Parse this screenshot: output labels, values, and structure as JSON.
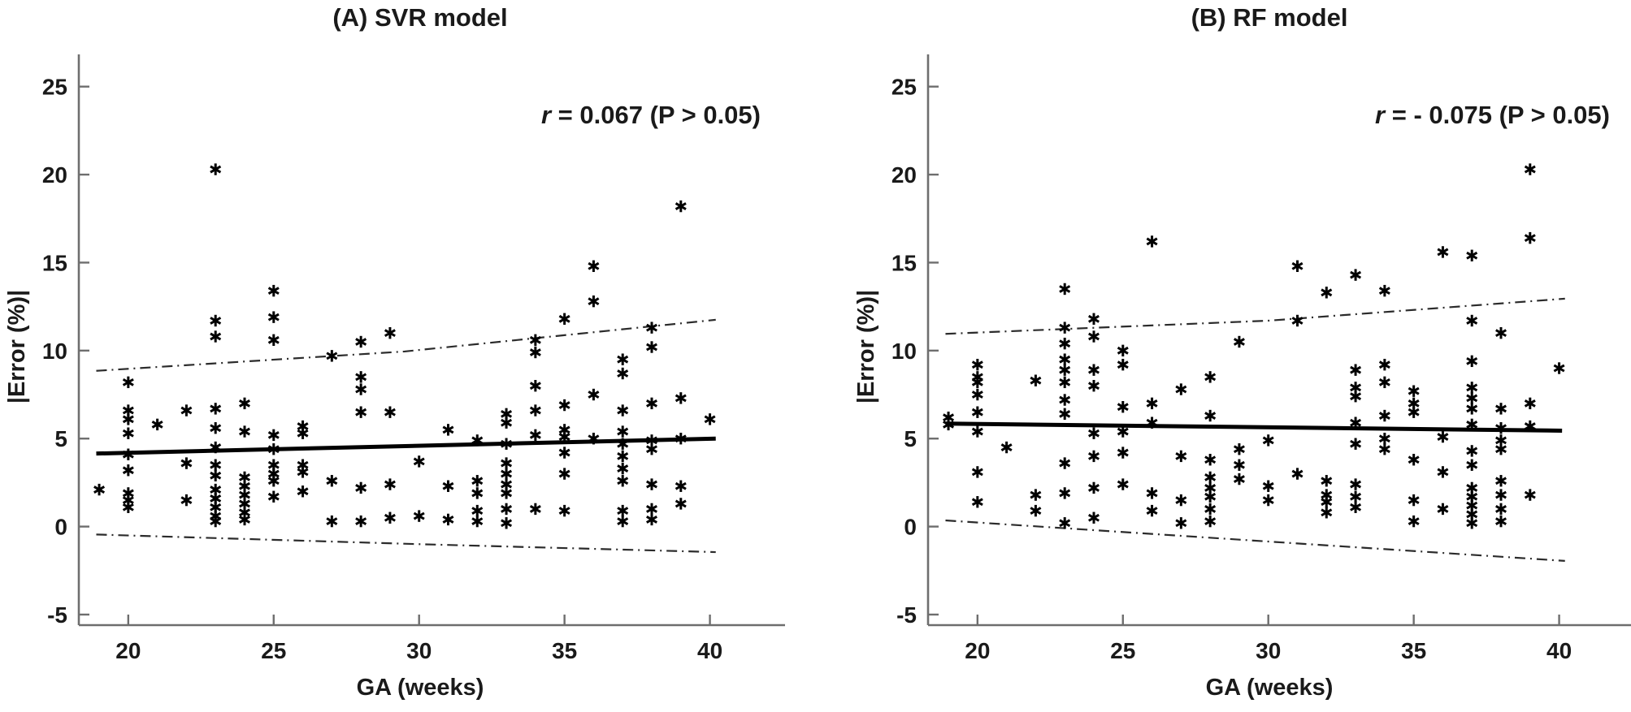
{
  "figure": {
    "background": "#ffffff"
  },
  "style": {
    "marker": "asterisk",
    "marker_color": "#000000",
    "trend_color": "#000000",
    "ci_color": "#2b2b2b",
    "spine_color": "#6e6e6e",
    "text_color": "#1a1a1a"
  },
  "chart_data": [
    {
      "type": "scatter",
      "title": "(A) SVR model",
      "annotation": {
        "r_italic": "r",
        "rest": " = 0.067 (P > 0.05)"
      },
      "xlabel": "GA (weeks)",
      "ylabel": "|Error (%)|",
      "xlim": [
        18.3,
        41.8
      ],
      "ylim": [
        -5.6,
        26
      ],
      "xticks": [
        20,
        25,
        30,
        35,
        40
      ],
      "yticks": [
        -5,
        0,
        5,
        10,
        15,
        20,
        25
      ],
      "grid": false,
      "legend": "none",
      "trend_line": {
        "x": [
          18.9,
          40.2
        ],
        "y": [
          4.15,
          5.0
        ]
      },
      "ci_upper": {
        "x": [
          18.9,
          29.5,
          40.2
        ],
        "y": [
          8.85,
          9.95,
          11.75
        ]
      },
      "ci_lower": {
        "x": [
          18.9,
          30.0,
          40.2
        ],
        "y": [
          -0.45,
          -1.0,
          -1.45
        ]
      },
      "points": [
        [
          19,
          2.1
        ],
        [
          20,
          8.2
        ],
        [
          20,
          6.6
        ],
        [
          20,
          6.1
        ],
        [
          20,
          5.3
        ],
        [
          20,
          4.1
        ],
        [
          20,
          3.2
        ],
        [
          20,
          1.9
        ],
        [
          20,
          1.5
        ],
        [
          20,
          1.1
        ],
        [
          21,
          5.8
        ],
        [
          22,
          6.6
        ],
        [
          22,
          3.6
        ],
        [
          22,
          1.5
        ],
        [
          23,
          20.3
        ],
        [
          23,
          11.7
        ],
        [
          23,
          10.8
        ],
        [
          23,
          6.7
        ],
        [
          23,
          5.6
        ],
        [
          23,
          4.5
        ],
        [
          23,
          3.5
        ],
        [
          23,
          2.9
        ],
        [
          23,
          2.1
        ],
        [
          23,
          1.6
        ],
        [
          23,
          1.1
        ],
        [
          23,
          0.6
        ],
        [
          23,
          0.3
        ],
        [
          24,
          7.0
        ],
        [
          24,
          5.4
        ],
        [
          24,
          2.8
        ],
        [
          24,
          2.3
        ],
        [
          24,
          1.8
        ],
        [
          24,
          1.3
        ],
        [
          24,
          0.8
        ],
        [
          24,
          0.4
        ],
        [
          25,
          13.4
        ],
        [
          25,
          11.9
        ],
        [
          25,
          10.6
        ],
        [
          25,
          5.2
        ],
        [
          25,
          4.4
        ],
        [
          25,
          3.5
        ],
        [
          25,
          3.0
        ],
        [
          25,
          2.6
        ],
        [
          25,
          1.7
        ],
        [
          26,
          5.7
        ],
        [
          26,
          5.3
        ],
        [
          26,
          3.5
        ],
        [
          26,
          3.1
        ],
        [
          26,
          2.0
        ],
        [
          27,
          9.7
        ],
        [
          27,
          2.6
        ],
        [
          27,
          0.3
        ],
        [
          28,
          10.5
        ],
        [
          28,
          8.5
        ],
        [
          28,
          7.8
        ],
        [
          28,
          6.5
        ],
        [
          28,
          2.2
        ],
        [
          28,
          0.3
        ],
        [
          29,
          11.0
        ],
        [
          29,
          6.5
        ],
        [
          29,
          2.4
        ],
        [
          29,
          0.5
        ],
        [
          30,
          3.7
        ],
        [
          30,
          0.6
        ],
        [
          31,
          5.5
        ],
        [
          31,
          2.3
        ],
        [
          31,
          0.4
        ],
        [
          32,
          4.9
        ],
        [
          32,
          2.6
        ],
        [
          32,
          1.9
        ],
        [
          32,
          0.9
        ],
        [
          32,
          0.3
        ],
        [
          33,
          6.4
        ],
        [
          33,
          5.9
        ],
        [
          33,
          4.7
        ],
        [
          33,
          3.6
        ],
        [
          33,
          3.0
        ],
        [
          33,
          2.4
        ],
        [
          33,
          1.9
        ],
        [
          33,
          1.0
        ],
        [
          33,
          0.2
        ],
        [
          34,
          10.6
        ],
        [
          34,
          9.9
        ],
        [
          34,
          8.0
        ],
        [
          34,
          6.6
        ],
        [
          34,
          5.2
        ],
        [
          34,
          1.0
        ],
        [
          35,
          11.8
        ],
        [
          35,
          6.9
        ],
        [
          35,
          5.5
        ],
        [
          35,
          5.1
        ],
        [
          35,
          4.2
        ],
        [
          35,
          3.0
        ],
        [
          35,
          0.9
        ],
        [
          36,
          14.8
        ],
        [
          36,
          12.8
        ],
        [
          36,
          7.5
        ],
        [
          36,
          5.0
        ],
        [
          37,
          9.5
        ],
        [
          37,
          8.7
        ],
        [
          37,
          6.6
        ],
        [
          37,
          5.4
        ],
        [
          37,
          4.7
        ],
        [
          37,
          4.0
        ],
        [
          37,
          3.3
        ],
        [
          37,
          2.6
        ],
        [
          37,
          0.9
        ],
        [
          37,
          0.3
        ],
        [
          38,
          11.3
        ],
        [
          38,
          10.2
        ],
        [
          38,
          7.0
        ],
        [
          38,
          4.9
        ],
        [
          38,
          4.4
        ],
        [
          38,
          2.4
        ],
        [
          38,
          1.0
        ],
        [
          38,
          0.4
        ],
        [
          39,
          18.2
        ],
        [
          39,
          7.3
        ],
        [
          39,
          5.0
        ],
        [
          39,
          2.3
        ],
        [
          39,
          1.3
        ],
        [
          40,
          6.1
        ]
      ]
    },
    {
      "type": "scatter",
      "title": "(B) RF model",
      "annotation": {
        "r_italic": "r",
        "rest": " = - 0.075 (P > 0.05)"
      },
      "xlabel": "GA (weeks)",
      "ylabel": "|Error (%)|",
      "xlim": [
        18.3,
        41.8
      ],
      "ylim": [
        -5.6,
        26
      ],
      "xticks": [
        20,
        25,
        30,
        35,
        40
      ],
      "yticks": [
        -5,
        0,
        5,
        10,
        15,
        20,
        25
      ],
      "grid": false,
      "legend": "none",
      "trend_line": {
        "x": [
          18.9,
          40.1
        ],
        "y": [
          5.85,
          5.45
        ]
      },
      "ci_upper": {
        "x": [
          18.9,
          30.0,
          40.2
        ],
        "y": [
          10.95,
          11.7,
          12.95
        ]
      },
      "ci_lower": {
        "x": [
          18.9,
          30.0,
          40.2
        ],
        "y": [
          0.35,
          -0.85,
          -1.95
        ]
      },
      "points": [
        [
          19,
          6.2
        ],
        [
          19,
          5.8
        ],
        [
          20,
          9.2
        ],
        [
          20,
          8.5
        ],
        [
          20,
          8.2
        ],
        [
          20,
          7.5
        ],
        [
          20,
          6.5
        ],
        [
          20,
          5.4
        ],
        [
          20,
          3.1
        ],
        [
          20,
          1.4
        ],
        [
          21,
          4.5
        ],
        [
          22,
          8.3
        ],
        [
          22,
          1.8
        ],
        [
          22,
          0.9
        ],
        [
          23,
          13.5
        ],
        [
          23,
          11.3
        ],
        [
          23,
          10.4
        ],
        [
          23,
          9.5
        ],
        [
          23,
          8.9
        ],
        [
          23,
          8.2
        ],
        [
          23,
          7.2
        ],
        [
          23,
          6.4
        ],
        [
          23,
          3.6
        ],
        [
          23,
          1.9
        ],
        [
          23,
          0.2
        ],
        [
          24,
          11.8
        ],
        [
          24,
          10.8
        ],
        [
          24,
          8.9
        ],
        [
          24,
          8.0
        ],
        [
          24,
          5.3
        ],
        [
          24,
          4.0
        ],
        [
          24,
          2.2
        ],
        [
          24,
          0.5
        ],
        [
          25,
          10.0
        ],
        [
          25,
          9.2
        ],
        [
          25,
          6.8
        ],
        [
          25,
          5.4
        ],
        [
          25,
          4.2
        ],
        [
          25,
          2.4
        ],
        [
          26,
          16.2
        ],
        [
          26,
          7.0
        ],
        [
          26,
          5.9
        ],
        [
          26,
          1.9
        ],
        [
          26,
          0.9
        ],
        [
          27,
          7.8
        ],
        [
          27,
          4.0
        ],
        [
          27,
          1.5
        ],
        [
          27,
          0.2
        ],
        [
          28,
          8.5
        ],
        [
          28,
          6.3
        ],
        [
          28,
          3.8
        ],
        [
          28,
          2.8
        ],
        [
          28,
          2.2
        ],
        [
          28,
          1.7
        ],
        [
          28,
          1.0
        ],
        [
          28,
          0.3
        ],
        [
          29,
          10.5
        ],
        [
          29,
          4.4
        ],
        [
          29,
          3.5
        ],
        [
          29,
          2.7
        ],
        [
          30,
          4.9
        ],
        [
          30,
          2.3
        ],
        [
          30,
          1.5
        ],
        [
          31,
          14.8
        ],
        [
          31,
          11.7
        ],
        [
          31,
          3.0
        ],
        [
          32,
          13.3
        ],
        [
          32,
          2.6
        ],
        [
          32,
          1.8
        ],
        [
          32,
          1.4
        ],
        [
          32,
          0.8
        ],
        [
          33,
          14.3
        ],
        [
          33,
          8.9
        ],
        [
          33,
          7.9
        ],
        [
          33,
          7.4
        ],
        [
          33,
          5.9
        ],
        [
          33,
          4.7
        ],
        [
          33,
          2.4
        ],
        [
          33,
          1.7
        ],
        [
          33,
          1.1
        ],
        [
          34,
          13.4
        ],
        [
          34,
          9.2
        ],
        [
          34,
          8.2
        ],
        [
          34,
          6.3
        ],
        [
          34,
          5.0
        ],
        [
          34,
          4.4
        ],
        [
          35,
          7.7
        ],
        [
          35,
          7.0
        ],
        [
          35,
          6.5
        ],
        [
          35,
          3.8
        ],
        [
          35,
          1.5
        ],
        [
          35,
          0.3
        ],
        [
          36,
          15.6
        ],
        [
          36,
          5.1
        ],
        [
          36,
          3.1
        ],
        [
          36,
          1.0
        ],
        [
          37,
          15.4
        ],
        [
          37,
          11.7
        ],
        [
          37,
          9.4
        ],
        [
          37,
          7.9
        ],
        [
          37,
          7.3
        ],
        [
          37,
          6.7
        ],
        [
          37,
          5.8
        ],
        [
          37,
          4.3
        ],
        [
          37,
          3.5
        ],
        [
          37,
          2.2
        ],
        [
          37,
          1.7
        ],
        [
          37,
          1.2
        ],
        [
          37,
          0.7
        ],
        [
          37,
          0.2
        ],
        [
          38,
          11.0
        ],
        [
          38,
          6.7
        ],
        [
          38,
          5.6
        ],
        [
          38,
          4.9
        ],
        [
          38,
          4.4
        ],
        [
          38,
          2.6
        ],
        [
          38,
          1.8
        ],
        [
          38,
          1.0
        ],
        [
          38,
          0.3
        ],
        [
          39,
          20.3
        ],
        [
          39,
          16.4
        ],
        [
          39,
          7.0
        ],
        [
          39,
          5.7
        ],
        [
          39,
          1.8
        ],
        [
          40,
          9.0
        ]
      ]
    }
  ]
}
